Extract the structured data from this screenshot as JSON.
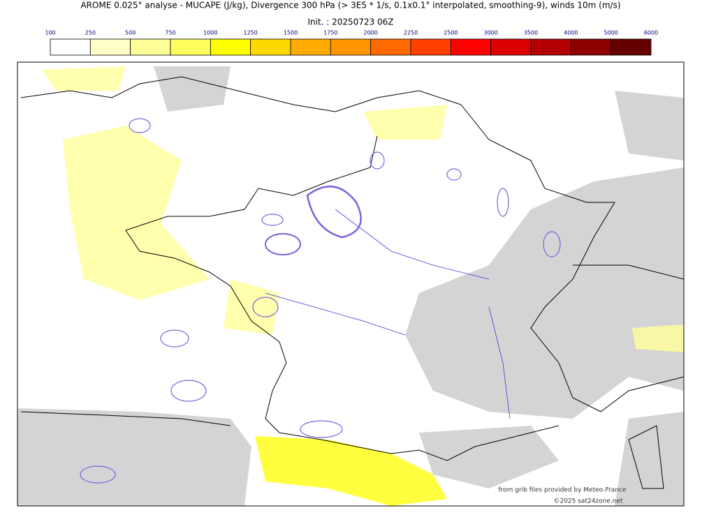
{
  "header": {
    "title": "AROME 0.025° analyse - MUCAPE (J/kg), Divergence 300 hPa (> 3E5 * 1/s, 0.1x0.1° interpolated, smoothing-9), winds 10m (m/s)",
    "init": "Init. : 20250723 06Z"
  },
  "colorbar": {
    "ticks": [
      100,
      250,
      500,
      750,
      1000,
      1250,
      1500,
      1750,
      2000,
      2250,
      2500,
      3000,
      3500,
      4000,
      5000,
      6000
    ],
    "colors": [
      "#ffffff",
      "#ffffc8",
      "#ffff9a",
      "#ffff60",
      "#ffff00",
      "#ffd800",
      "#ffaa00",
      "#ff9600",
      "#ff6a00",
      "#ff4000",
      "#ff0000",
      "#dc0000",
      "#b40000",
      "#8c0000",
      "#640000"
    ]
  },
  "credits": {
    "source": "from grib files provided by Meteo-France",
    "copyright": "©2025 sat24zone.net"
  }
}
